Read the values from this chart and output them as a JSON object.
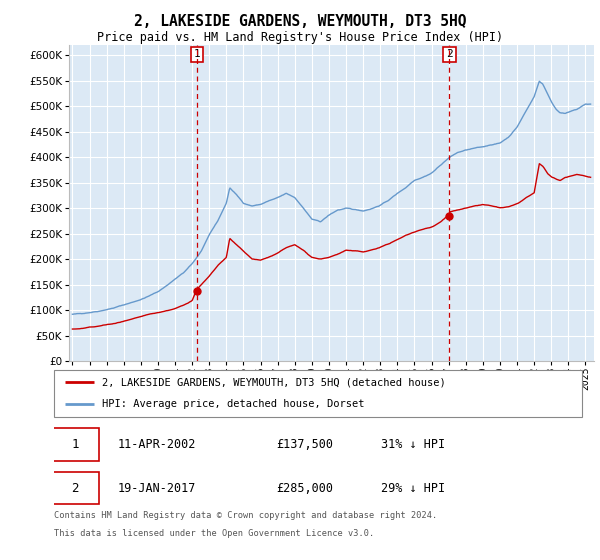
{
  "title": "2, LAKESIDE GARDENS, WEYMOUTH, DT3 5HQ",
  "subtitle": "Price paid vs. HM Land Registry's House Price Index (HPI)",
  "ylim": [
    0,
    620000
  ],
  "xlim_start": 1994.8,
  "xlim_end": 2025.5,
  "background_color": "#ffffff",
  "plot_bg_color": "#dce9f5",
  "grid_color": "#ffffff",
  "red_line_color": "#cc0000",
  "blue_line_color": "#6699cc",
  "marker1_x": 2002.28,
  "marker1_y": 137500,
  "marker2_x": 2017.05,
  "marker2_y": 285000,
  "legend_line1": "2, LAKESIDE GARDENS, WEYMOUTH, DT3 5HQ (detached house)",
  "legend_line2": "HPI: Average price, detached house, Dorset",
  "table_row1": [
    "1",
    "11-APR-2002",
    "£137,500",
    "31% ↓ HPI"
  ],
  "table_row2": [
    "2",
    "19-JAN-2017",
    "£285,000",
    "29% ↓ HPI"
  ],
  "footnote1": "Contains HM Land Registry data © Crown copyright and database right 2024.",
  "footnote2": "This data is licensed under the Open Government Licence v3.0.",
  "hpi_data": [
    [
      1995.0,
      92000
    ],
    [
      1995.5,
      93000
    ],
    [
      1996.0,
      96000
    ],
    [
      1996.5,
      99000
    ],
    [
      1997.0,
      103000
    ],
    [
      1997.5,
      107000
    ],
    [
      1998.0,
      112000
    ],
    [
      1998.5,
      117000
    ],
    [
      1999.0,
      123000
    ],
    [
      1999.5,
      130000
    ],
    [
      2000.0,
      138000
    ],
    [
      2000.5,
      150000
    ],
    [
      2001.0,
      163000
    ],
    [
      2001.5,
      175000
    ],
    [
      2002.0,
      192000
    ],
    [
      2002.5,
      215000
    ],
    [
      2003.0,
      248000
    ],
    [
      2003.5,
      275000
    ],
    [
      2004.0,
      310000
    ],
    [
      2004.2,
      340000
    ],
    [
      2004.5,
      330000
    ],
    [
      2005.0,
      310000
    ],
    [
      2005.5,
      305000
    ],
    [
      2006.0,
      308000
    ],
    [
      2006.5,
      315000
    ],
    [
      2007.0,
      320000
    ],
    [
      2007.5,
      328000
    ],
    [
      2008.0,
      320000
    ],
    [
      2008.5,
      300000
    ],
    [
      2009.0,
      278000
    ],
    [
      2009.5,
      272000
    ],
    [
      2010.0,
      285000
    ],
    [
      2010.5,
      295000
    ],
    [
      2011.0,
      298000
    ],
    [
      2011.5,
      295000
    ],
    [
      2012.0,
      293000
    ],
    [
      2012.5,
      298000
    ],
    [
      2013.0,
      305000
    ],
    [
      2013.5,
      315000
    ],
    [
      2014.0,
      328000
    ],
    [
      2014.5,
      340000
    ],
    [
      2015.0,
      355000
    ],
    [
      2015.5,
      362000
    ],
    [
      2016.0,
      370000
    ],
    [
      2016.5,
      385000
    ],
    [
      2017.0,
      400000
    ],
    [
      2017.5,
      410000
    ],
    [
      2018.0,
      415000
    ],
    [
      2018.5,
      418000
    ],
    [
      2019.0,
      420000
    ],
    [
      2019.5,
      425000
    ],
    [
      2020.0,
      428000
    ],
    [
      2020.5,
      440000
    ],
    [
      2021.0,
      460000
    ],
    [
      2021.5,
      490000
    ],
    [
      2022.0,
      520000
    ],
    [
      2022.3,
      550000
    ],
    [
      2022.5,
      545000
    ],
    [
      2022.8,
      525000
    ],
    [
      2023.0,
      510000
    ],
    [
      2023.3,
      495000
    ],
    [
      2023.5,
      490000
    ],
    [
      2023.8,
      488000
    ],
    [
      2024.0,
      490000
    ],
    [
      2024.5,
      495000
    ],
    [
      2025.0,
      505000
    ],
    [
      2025.3,
      505000
    ]
  ],
  "red_data": [
    [
      1995.0,
      63000
    ],
    [
      1995.5,
      64000
    ],
    [
      1996.0,
      66000
    ],
    [
      1996.5,
      68000
    ],
    [
      1997.0,
      71000
    ],
    [
      1997.5,
      73000
    ],
    [
      1998.0,
      77000
    ],
    [
      1998.5,
      80000
    ],
    [
      1999.0,
      84000
    ],
    [
      1999.5,
      88000
    ],
    [
      2000.0,
      91000
    ],
    [
      2000.5,
      95000
    ],
    [
      2001.0,
      99000
    ],
    [
      2001.5,
      105000
    ],
    [
      2002.0,
      115000
    ],
    [
      2002.28,
      137500
    ],
    [
      2002.5,
      145000
    ],
    [
      2003.0,
      162000
    ],
    [
      2003.5,
      182000
    ],
    [
      2004.0,
      198000
    ],
    [
      2004.2,
      235000
    ],
    [
      2004.5,
      225000
    ],
    [
      2005.0,
      210000
    ],
    [
      2005.5,
      195000
    ],
    [
      2006.0,
      192000
    ],
    [
      2006.5,
      198000
    ],
    [
      2007.0,
      205000
    ],
    [
      2007.5,
      215000
    ],
    [
      2008.0,
      220000
    ],
    [
      2008.5,
      210000
    ],
    [
      2009.0,
      195000
    ],
    [
      2009.5,
      192000
    ],
    [
      2010.0,
      196000
    ],
    [
      2010.5,
      202000
    ],
    [
      2011.0,
      210000
    ],
    [
      2011.5,
      208000
    ],
    [
      2012.0,
      206000
    ],
    [
      2012.5,
      210000
    ],
    [
      2013.0,
      215000
    ],
    [
      2013.5,
      222000
    ],
    [
      2014.0,
      230000
    ],
    [
      2014.5,
      238000
    ],
    [
      2015.0,
      245000
    ],
    [
      2015.5,
      250000
    ],
    [
      2016.0,
      255000
    ],
    [
      2016.5,
      265000
    ],
    [
      2017.0,
      280000
    ],
    [
      2017.05,
      285000
    ],
    [
      2017.5,
      288000
    ],
    [
      2018.0,
      292000
    ],
    [
      2018.5,
      295000
    ],
    [
      2019.0,
      298000
    ],
    [
      2019.5,
      295000
    ],
    [
      2020.0,
      290000
    ],
    [
      2020.5,
      292000
    ],
    [
      2021.0,
      298000
    ],
    [
      2021.5,
      308000
    ],
    [
      2022.0,
      318000
    ],
    [
      2022.3,
      375000
    ],
    [
      2022.5,
      370000
    ],
    [
      2022.8,
      355000
    ],
    [
      2023.0,
      350000
    ],
    [
      2023.3,
      345000
    ],
    [
      2023.5,
      342000
    ],
    [
      2023.8,
      348000
    ],
    [
      2024.0,
      350000
    ],
    [
      2024.5,
      355000
    ],
    [
      2025.0,
      352000
    ],
    [
      2025.3,
      350000
    ]
  ]
}
